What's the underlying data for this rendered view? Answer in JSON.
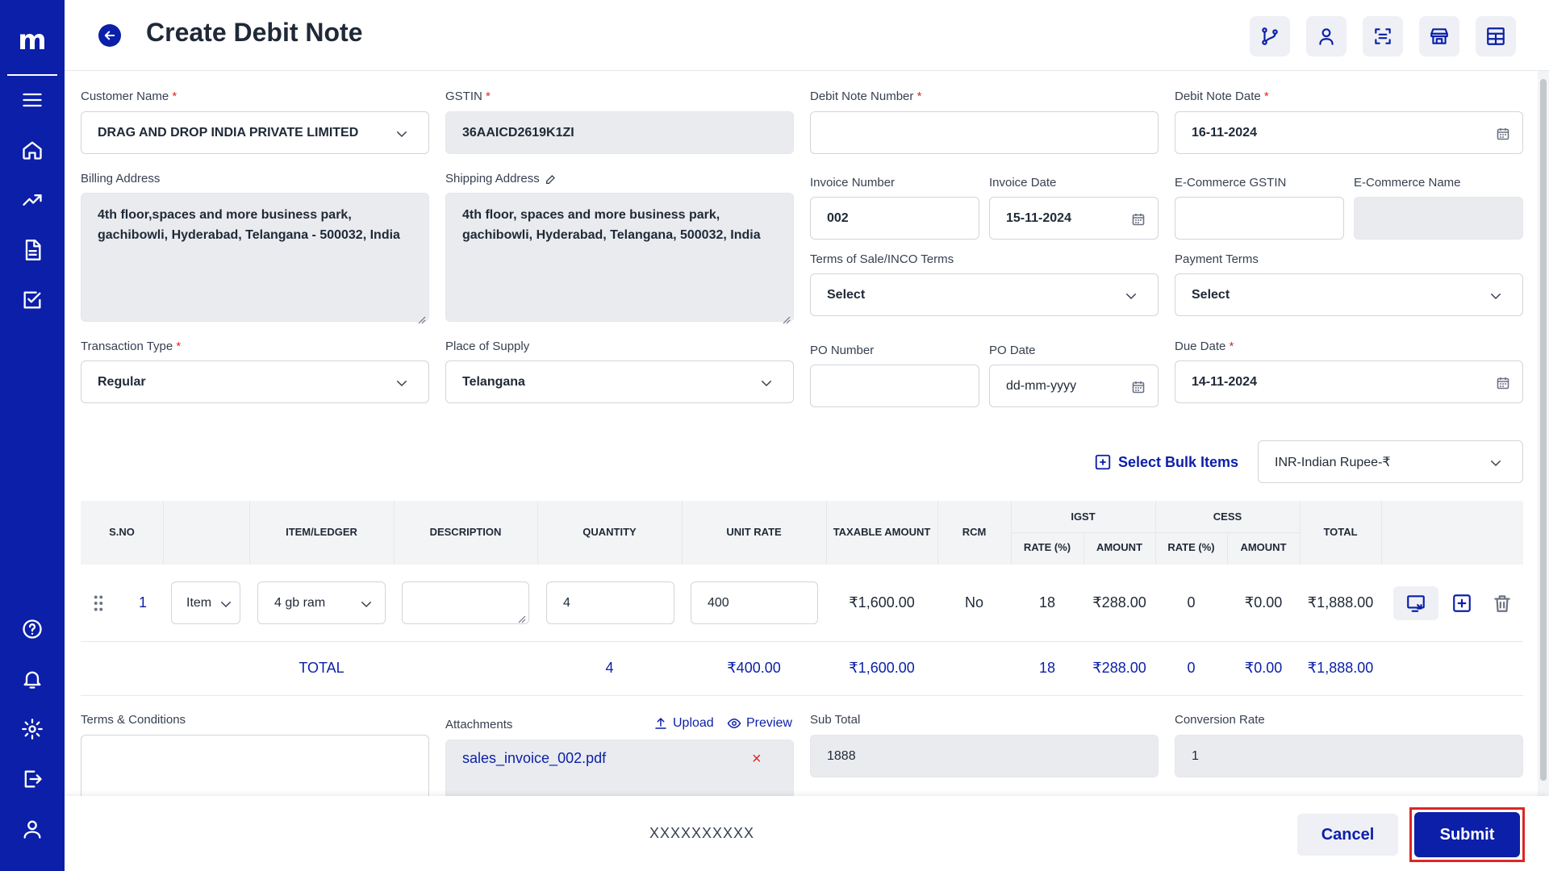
{
  "app": {
    "logo": "m"
  },
  "header": {
    "title": "Create Debit Note"
  },
  "form": {
    "customer_name": {
      "label": "Customer Name",
      "value": "DRAG AND DROP INDIA PRIVATE LIMITED"
    },
    "gstin": {
      "label": "GSTIN",
      "value": "36AAICD2619K1ZI"
    },
    "debit_note_number": {
      "label": "Debit Note Number",
      "value": ""
    },
    "debit_note_date": {
      "label": "Debit Note Date",
      "value": "16-11-2024"
    },
    "billing_address": {
      "label": "Billing Address",
      "value": "4th floor,spaces and more business park, gachibowli, Hyderabad, Telangana - 500032, India"
    },
    "shipping_address": {
      "label": "Shipping Address",
      "value": "4th floor, spaces and more business park, gachibowli, Hyderabad, Telangana, 500032, India"
    },
    "invoice_number": {
      "label": "Invoice Number",
      "value": "002"
    },
    "invoice_date": {
      "label": "Invoice Date",
      "value": "15-11-2024"
    },
    "ecommerce_gstin": {
      "label": "E-Commerce GSTIN",
      "value": ""
    },
    "ecommerce_name": {
      "label": "E-Commerce Name",
      "value": ""
    },
    "terms_of_sale": {
      "label": "Terms of Sale/INCO Terms",
      "value": "Select"
    },
    "payment_terms": {
      "label": "Payment Terms",
      "value": "Select"
    },
    "transaction_type": {
      "label": "Transaction Type",
      "value": "Regular"
    },
    "place_of_supply": {
      "label": "Place of Supply",
      "value": "Telangana"
    },
    "po_number": {
      "label": "PO Number",
      "value": ""
    },
    "po_date": {
      "label": "PO Date",
      "value": "dd-mm-yyyy"
    },
    "due_date": {
      "label": "Due Date",
      "value": "14-11-2024"
    },
    "required_mark": "*"
  },
  "items": {
    "bulk_label": "Select Bulk Items",
    "currency": "INR-Indian Rupee-₹",
    "columns": {
      "sno": "S.NO",
      "item_ledger": "ITEM/LEDGER",
      "description": "DESCRIPTION",
      "quantity": "QUANTITY",
      "unit_rate": "UNIT RATE",
      "taxable_amount": "TAXABLE AMOUNT",
      "rcm": "RCM",
      "igst": "IGST",
      "cess": "CESS",
      "rate_pct": "RATE (%)",
      "amount": "AMOUNT",
      "total": "TOTAL"
    },
    "rows": [
      {
        "sno": "1",
        "type": "Item",
        "item": "4 gb ram",
        "description": "",
        "quantity": "4",
        "unit_rate": "400",
        "taxable_amount": "₹1,600.00",
        "rcm": "No",
        "igst_rate": "18",
        "igst_amount": "₹288.00",
        "cess_rate": "0",
        "cess_amount": "₹0.00",
        "total": "₹1,888.00"
      }
    ],
    "totals": {
      "label": "TOTAL",
      "quantity": "4",
      "unit_rate": "₹400.00",
      "taxable_amount": "₹1,600.00",
      "igst_rate": "18",
      "igst_amount": "₹288.00",
      "cess_rate": "0",
      "cess_amount": "₹0.00",
      "total": "₹1,888.00"
    }
  },
  "bottom": {
    "terms_label": "Terms & Conditions",
    "terms_value": "",
    "attachments_label": "Attachments",
    "upload_label": "Upload",
    "preview_label": "Preview",
    "attachment_file": "sales_invoice_002.pdf",
    "remove_mark": "×",
    "sub_total_label": "Sub Total",
    "sub_total_value": "1888",
    "conversion_rate_label": "Conversion Rate",
    "conversion_rate_value": "1"
  },
  "footer": {
    "text": "XXXXXXXXXX",
    "cancel_label": "Cancel",
    "submit_label": "Submit"
  },
  "colors": {
    "brand": "#0b1fa8",
    "highlight": "#dc2626",
    "disabled": "#e9ebef"
  }
}
